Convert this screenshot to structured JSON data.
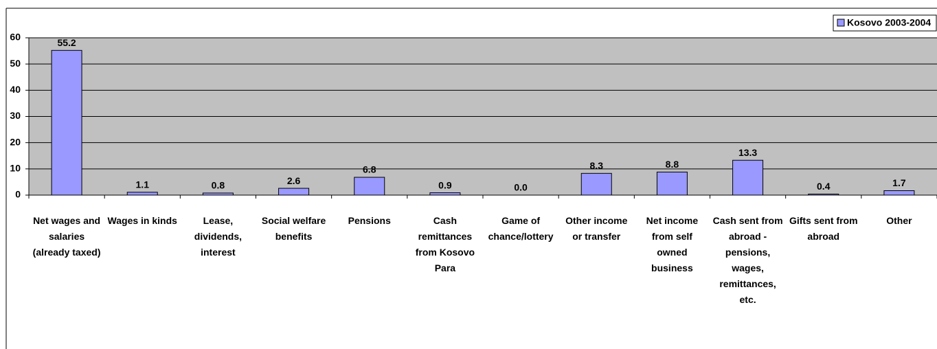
{
  "chart_data": {
    "type": "bar",
    "categories": [
      "Net wages and salaries (already taxed)",
      "Wages in kinds",
      "Lease, dividends, interest",
      "Social welfare benefits",
      "Pensions",
      "Cash remittances from Kosovo Para",
      "Game of chance/lottery",
      "Other income or transfer",
      "Net income from self owned business",
      "Cash sent from abroad - pensions, wages, remittances, etc.",
      "Gifts sent from abroad",
      "Other"
    ],
    "series": [
      {
        "name": "Kosovo 2003-2004",
        "color": "#9999ff",
        "values": [
          55.2,
          1.1,
          0.8,
          2.6,
          6.8,
          0.9,
          0,
          8.3,
          8.8,
          13.3,
          0.4,
          1.7
        ],
        "value_labels": [
          "55.2",
          "1.1",
          "0.8",
          "2.6",
          "6.8",
          "0.9",
          "0.0",
          "8.3",
          "8.8",
          "13.3",
          "0.4",
          "1.7"
        ]
      }
    ],
    "ylim": [
      0,
      60
    ],
    "yticks": [
      0,
      10,
      20,
      30,
      40,
      50,
      60
    ],
    "grid": true,
    "legend": "top-right"
  }
}
